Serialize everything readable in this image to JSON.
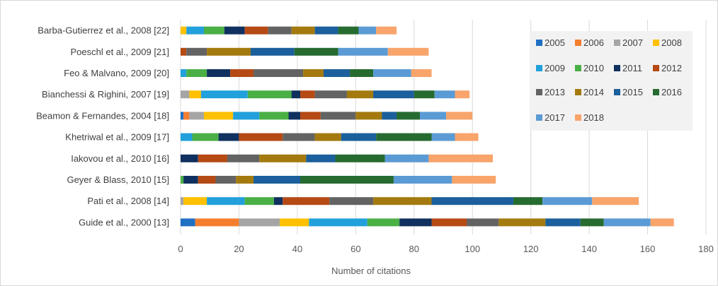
{
  "chart_data": {
    "type": "bar",
    "orientation": "horizontal",
    "stacked": true,
    "xlabel": "Number of citations",
    "xlim": [
      0,
      180
    ],
    "xticks": [
      0,
      20,
      40,
      60,
      80,
      100,
      120,
      140,
      160,
      180
    ],
    "grid": true,
    "legend_position": "top-right",
    "categories": [
      "Barba-Gutierrez et al., 2008 [22]",
      "Poeschl et al., 2009 [21]",
      "Feo & Malvano, 2009 [20]",
      "Bianchessi & Righini, 2007 [19]",
      "Beamon & Fernandes, 2004 [18]",
      "Khetriwal et al., 2009 [17]",
      "Iakovou et al., 2010 [16]",
      "Geyer & Blass, 2010 [15]",
      "Pati et al., 2008 [14]",
      "Guide et al., 2000 [13]"
    ],
    "series": [
      {
        "name": "2005",
        "color": "#1f6fc4",
        "values": [
          0,
          0,
          0,
          0,
          1,
          0,
          0,
          0,
          0,
          5
        ]
      },
      {
        "name": "2006",
        "color": "#f47e2e",
        "values": [
          0,
          0,
          0,
          0,
          2,
          0,
          0,
          0,
          0,
          15
        ]
      },
      {
        "name": "2007",
        "color": "#a5a5a5",
        "values": [
          0,
          0,
          0,
          3,
          5,
          0,
          0,
          0,
          1,
          14
        ]
      },
      {
        "name": "2008",
        "color": "#ffc000",
        "values": [
          2,
          0,
          0,
          4,
          10,
          0,
          0,
          0,
          8,
          10
        ]
      },
      {
        "name": "2009",
        "color": "#21a0db",
        "values": [
          6,
          0,
          2,
          16,
          9,
          4,
          0,
          0,
          13,
          20
        ]
      },
      {
        "name": "2010",
        "color": "#4ab045",
        "values": [
          7,
          0,
          7,
          15,
          10,
          9,
          0,
          1,
          10,
          11
        ]
      },
      {
        "name": "2011",
        "color": "#10315f",
        "values": [
          7,
          0,
          8,
          3,
          4,
          7,
          6,
          5,
          3,
          11
        ]
      },
      {
        "name": "2012",
        "color": "#b54a14",
        "values": [
          8,
          2,
          8,
          5,
          7,
          15,
          10,
          6,
          16,
          12
        ]
      },
      {
        "name": "2013",
        "color": "#636363",
        "values": [
          8,
          7,
          17,
          11,
          12,
          11,
          11,
          7,
          15,
          11
        ]
      },
      {
        "name": "2014",
        "color": "#a47a0f",
        "values": [
          8,
          15,
          7,
          9,
          9,
          9,
          16,
          6,
          20,
          16
        ]
      },
      {
        "name": "2015",
        "color": "#1b5f9c",
        "values": [
          8,
          15,
          9,
          14,
          5,
          12,
          10,
          16,
          28,
          12
        ]
      },
      {
        "name": "2016",
        "color": "#266b30",
        "values": [
          7,
          15,
          8,
          7,
          8,
          19,
          17,
          32,
          10,
          8
        ]
      },
      {
        "name": "2017",
        "color": "#5b9bd5",
        "values": [
          6,
          17,
          13,
          7,
          9,
          8,
          15,
          20,
          17,
          16
        ]
      },
      {
        "name": "2018",
        "color": "#f8a46a",
        "values": [
          7,
          14,
          7,
          5,
          9,
          8,
          22,
          15,
          16,
          8
        ]
      }
    ]
  }
}
